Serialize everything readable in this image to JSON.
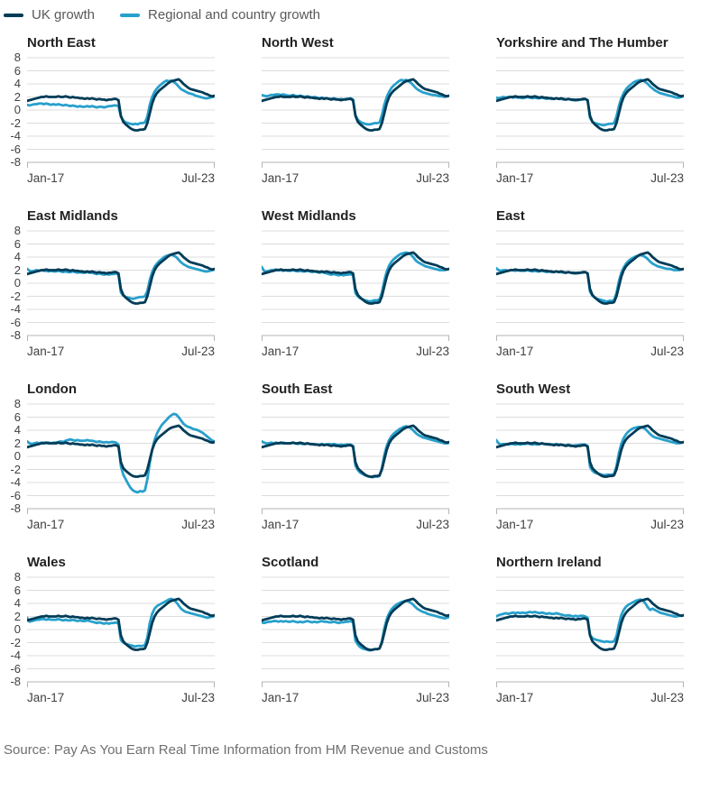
{
  "legend": {
    "uk_label": "UK growth",
    "regional_label": "Regional and country growth"
  },
  "source_text": "Source: Pay As You Earn Real Time Information from HM Revenue and Customs",
  "colors": {
    "uk_line": "#003c57",
    "regional_line": "#27a0cc",
    "gridline": "#dcdcdc",
    "axis": "#b5b5b5",
    "title_text": "#222222",
    "tick_text": "#414042",
    "legend_text": "#595959",
    "source_text": "#707071"
  },
  "chart_data": {
    "type": "line",
    "layout": "small-multiples 4 rows x 3 cols",
    "frequency": "monthly",
    "x_start": "Jan-17",
    "x_end": "Jul-23",
    "x_tick_labels": [
      "Jan-17",
      "Jul-23"
    ],
    "ylim": [
      -8,
      8
    ],
    "y_ticks": [
      8,
      6,
      4,
      2,
      0,
      -2,
      -4,
      -6,
      -8
    ],
    "grid": true,
    "legend_position": "top-left",
    "uk_series": {
      "name": "UK growth",
      "values": [
        1.4,
        1.5,
        1.6,
        1.7,
        1.8,
        1.9,
        2.0,
        2.0,
        2.1,
        2.0,
        2.0,
        2.0,
        2.0,
        2.1,
        2.0,
        2.0,
        2.1,
        2.0,
        1.9,
        2.0,
        1.9,
        1.9,
        1.8,
        1.8,
        1.7,
        1.8,
        1.7,
        1.8,
        1.7,
        1.6,
        1.7,
        1.6,
        1.6,
        1.5,
        1.6,
        1.6,
        1.7,
        1.7,
        1.5,
        -0.9,
        -1.8,
        -2.2,
        -2.5,
        -2.8,
        -3.0,
        -3.1,
        -3.1,
        -3.0,
        -3.0,
        -2.9,
        -2.0,
        -0.5,
        1.0,
        2.0,
        2.6,
        3.0,
        3.3,
        3.6,
        3.9,
        4.2,
        4.4,
        4.5,
        4.6,
        4.7,
        4.4,
        4.0,
        3.7,
        3.4,
        3.2,
        3.1,
        3.0,
        2.9,
        2.8,
        2.7,
        2.5,
        2.4,
        2.2,
        2.1,
        2.2
      ]
    },
    "charts": [
      {
        "title": "North East",
        "regional_values": [
          0.8,
          0.7,
          0.8,
          0.9,
          0.9,
          1.0,
          1.0,
          0.9,
          1.0,
          0.9,
          0.8,
          0.9,
          0.8,
          0.9,
          0.8,
          0.7,
          0.8,
          0.7,
          0.6,
          0.7,
          0.6,
          0.5,
          0.6,
          0.5,
          0.5,
          0.6,
          0.5,
          0.6,
          0.5,
          0.4,
          0.5,
          0.5,
          0.4,
          0.5,
          0.6,
          0.6,
          0.7,
          0.7,
          0.6,
          -1.0,
          -1.6,
          -1.9,
          -2.0,
          -2.1,
          -2.2,
          -2.1,
          -2.2,
          -2.0,
          -2.0,
          -1.9,
          -1.0,
          0.8,
          2.0,
          2.8,
          3.3,
          3.7,
          4.0,
          4.3,
          4.5,
          4.4,
          4.5,
          4.3,
          4.0,
          3.6,
          3.2,
          3.0,
          2.8,
          2.6,
          2.5,
          2.4,
          2.2,
          2.1,
          2.0,
          1.9,
          1.8,
          1.8,
          1.9,
          2.0,
          2.1
        ]
      },
      {
        "title": "North West",
        "regional_values": [
          2.3,
          2.2,
          2.1,
          2.2,
          2.3,
          2.3,
          2.4,
          2.4,
          2.3,
          2.4,
          2.3,
          2.2,
          2.2,
          2.3,
          2.2,
          2.1,
          2.2,
          2.1,
          2.0,
          2.1,
          2.0,
          1.9,
          2.0,
          1.9,
          1.8,
          1.9,
          1.8,
          1.8,
          1.7,
          1.7,
          1.8,
          1.7,
          1.6,
          1.7,
          1.6,
          1.7,
          1.7,
          1.8,
          1.6,
          -0.8,
          -1.5,
          -1.8,
          -2.0,
          -2.1,
          -2.2,
          -2.2,
          -2.1,
          -2.0,
          -2.0,
          -1.9,
          -0.8,
          0.8,
          2.0,
          2.8,
          3.4,
          3.8,
          4.1,
          4.4,
          4.6,
          4.5,
          4.6,
          4.4,
          4.2,
          3.8,
          3.4,
          3.1,
          2.9,
          2.7,
          2.6,
          2.5,
          2.4,
          2.3,
          2.3,
          2.2,
          2.1,
          2.1,
          2.0,
          2.1,
          2.2
        ]
      },
      {
        "title": "Yorkshire and The Humber",
        "regional_values": [
          1.9,
          1.8,
          1.9,
          2.0,
          1.9,
          2.0,
          2.0,
          1.9,
          2.0,
          1.9,
          1.9,
          1.8,
          1.9,
          2.0,
          1.9,
          1.8,
          1.9,
          1.8,
          1.8,
          1.9,
          1.8,
          1.7,
          1.8,
          1.7,
          1.7,
          1.8,
          1.7,
          1.7,
          1.6,
          1.6,
          1.7,
          1.6,
          1.5,
          1.6,
          1.5,
          1.6,
          1.6,
          1.7,
          1.5,
          -1.2,
          -1.8,
          -2.0,
          -2.1,
          -2.2,
          -2.3,
          -2.3,
          -2.2,
          -2.1,
          -2.1,
          -2.0,
          -1.0,
          0.6,
          1.8,
          2.6,
          3.2,
          3.6,
          3.9,
          4.2,
          4.4,
          4.5,
          4.6,
          4.5,
          4.3,
          4.0,
          3.6,
          3.3,
          3.0,
          2.8,
          2.6,
          2.5,
          2.4,
          2.3,
          2.2,
          2.1,
          2.0,
          1.9,
          1.9,
          2.0,
          2.2
        ]
      },
      {
        "title": "East Midlands",
        "regional_values": [
          2.2,
          1.9,
          1.8,
          1.9,
          2.0,
          1.9,
          2.0,
          1.9,
          1.9,
          1.8,
          1.9,
          1.8,
          1.8,
          1.9,
          1.8,
          1.7,
          1.8,
          1.7,
          1.7,
          1.8,
          1.7,
          1.6,
          1.7,
          1.6,
          1.6,
          1.7,
          1.6,
          1.6,
          1.5,
          1.4,
          1.5,
          1.4,
          1.3,
          1.4,
          1.3,
          1.4,
          1.4,
          1.5,
          1.3,
          -1.4,
          -1.9,
          -2.1,
          -2.2,
          -2.3,
          -2.4,
          -2.3,
          -2.2,
          -2.1,
          -2.1,
          -2.0,
          -1.2,
          0.5,
          1.7,
          2.5,
          3.0,
          3.4,
          3.7,
          4.0,
          4.2,
          4.3,
          4.4,
          4.2,
          4.0,
          3.6,
          3.2,
          2.9,
          2.7,
          2.5,
          2.4,
          2.3,
          2.2,
          2.1,
          2.0,
          1.9,
          1.8,
          1.8,
          1.9,
          2.0,
          2.1
        ]
      },
      {
        "title": "West Midlands",
        "regional_values": [
          2.5,
          1.9,
          1.8,
          1.9,
          2.0,
          2.0,
          2.1,
          2.0,
          2.0,
          1.9,
          2.0,
          1.9,
          1.9,
          2.0,
          1.9,
          1.8,
          1.9,
          1.8,
          1.8,
          1.9,
          1.8,
          1.7,
          1.8,
          1.7,
          1.6,
          1.7,
          1.6,
          1.5,
          1.4,
          1.3,
          1.4,
          1.3,
          1.2,
          1.3,
          1.2,
          1.3,
          1.3,
          1.4,
          1.2,
          -1.5,
          -2.0,
          -2.3,
          -2.5,
          -2.6,
          -2.7,
          -2.8,
          -2.7,
          -2.6,
          -2.6,
          -2.5,
          -1.4,
          0.4,
          1.8,
          2.7,
          3.3,
          3.7,
          4.0,
          4.3,
          4.5,
          4.6,
          4.7,
          4.6,
          4.4,
          4.0,
          3.5,
          3.2,
          3.0,
          2.8,
          2.6,
          2.5,
          2.4,
          2.3,
          2.2,
          2.1,
          2.0,
          2.0,
          2.0,
          2.1,
          2.2
        ]
      },
      {
        "title": "East",
        "regional_values": [
          2.3,
          2.0,
          1.9,
          2.0,
          2.0,
          1.9,
          2.0,
          2.0,
          1.9,
          2.0,
          1.9,
          1.9,
          1.9,
          2.0,
          1.9,
          1.8,
          1.9,
          1.8,
          1.8,
          1.9,
          1.8,
          1.7,
          1.8,
          1.7,
          1.7,
          1.8,
          1.7,
          1.7,
          1.6,
          1.6,
          1.7,
          1.6,
          1.5,
          1.6,
          1.5,
          1.6,
          1.6,
          1.7,
          1.5,
          -1.3,
          -1.9,
          -2.2,
          -2.4,
          -2.5,
          -2.6,
          -2.7,
          -2.8,
          -2.7,
          -2.7,
          -2.6,
          -1.5,
          0.3,
          1.6,
          2.4,
          3.0,
          3.4,
          3.7,
          3.9,
          4.1,
          4.2,
          4.3,
          4.2,
          4.0,
          3.7,
          3.3,
          3.0,
          2.8,
          2.6,
          2.5,
          2.4,
          2.3,
          2.2,
          2.2,
          2.1,
          2.0,
          2.0,
          2.0,
          2.1,
          2.2
        ]
      },
      {
        "title": "London",
        "regional_values": [
          2.3,
          2.0,
          1.9,
          2.0,
          2.1,
          2.0,
          2.1,
          2.1,
          2.0,
          2.1,
          2.0,
          2.1,
          2.1,
          2.2,
          2.3,
          2.2,
          2.4,
          2.5,
          2.6,
          2.5,
          2.4,
          2.5,
          2.4,
          2.4,
          2.4,
          2.5,
          2.4,
          2.4,
          2.3,
          2.2,
          2.3,
          2.2,
          2.1,
          2.2,
          2.1,
          2.2,
          2.2,
          2.1,
          1.8,
          -1.5,
          -2.8,
          -3.5,
          -4.2,
          -4.8,
          -5.2,
          -5.4,
          -5.5,
          -5.3,
          -5.4,
          -5.2,
          -3.5,
          -1.0,
          1.0,
          2.5,
          3.5,
          4.2,
          4.8,
          5.2,
          5.6,
          6.0,
          6.3,
          6.5,
          6.4,
          6.0,
          5.5,
          5.0,
          4.7,
          4.5,
          4.4,
          4.2,
          4.1,
          4.0,
          3.8,
          3.6,
          3.3,
          3.0,
          2.7,
          2.4,
          2.3
        ]
      },
      {
        "title": "South East",
        "regional_values": [
          2.3,
          2.1,
          2.0,
          2.0,
          2.1,
          2.0,
          2.1,
          2.0,
          2.0,
          2.1,
          2.0,
          2.0,
          2.0,
          2.1,
          2.0,
          1.9,
          2.0,
          1.9,
          1.9,
          2.0,
          1.9,
          1.8,
          1.9,
          1.8,
          1.8,
          1.9,
          1.8,
          1.8,
          1.9,
          1.8,
          1.9,
          1.8,
          1.7,
          1.8,
          1.7,
          1.8,
          1.8,
          1.8,
          1.6,
          -1.4,
          -2.1,
          -2.5,
          -2.7,
          -2.9,
          -3.0,
          -3.1,
          -3.2,
          -3.1,
          -3.1,
          -3.0,
          -1.8,
          0.2,
          1.6,
          2.5,
          3.1,
          3.5,
          3.8,
          4.1,
          4.3,
          4.5,
          4.6,
          4.5,
          4.3,
          4.0,
          3.6,
          3.3,
          3.1,
          2.9,
          2.8,
          2.7,
          2.6,
          2.5,
          2.4,
          2.3,
          2.2,
          2.1,
          2.0,
          2.0,
          2.1
        ]
      },
      {
        "title": "South West",
        "regional_values": [
          2.5,
          2.0,
          1.8,
          1.9,
          1.9,
          1.8,
          1.9,
          1.9,
          1.8,
          1.9,
          1.8,
          1.9,
          1.9,
          2.0,
          1.9,
          1.8,
          1.9,
          1.8,
          1.9,
          2.0,
          1.9,
          1.8,
          1.9,
          1.8,
          1.8,
          1.9,
          1.8,
          1.8,
          1.7,
          1.7,
          1.8,
          1.7,
          1.6,
          1.7,
          1.7,
          1.8,
          1.8,
          1.8,
          1.6,
          -1.6,
          -2.2,
          -2.5,
          -2.6,
          -2.7,
          -2.8,
          -2.9,
          -2.8,
          -2.8,
          -2.8,
          -2.7,
          -1.5,
          0.5,
          1.9,
          2.8,
          3.4,
          3.8,
          4.1,
          4.3,
          4.4,
          4.5,
          4.5,
          4.4,
          4.2,
          3.8,
          3.4,
          3.1,
          2.9,
          2.8,
          2.7,
          2.6,
          2.5,
          2.4,
          2.3,
          2.2,
          2.1,
          2.0,
          2.0,
          2.1,
          2.2
        ]
      },
      {
        "title": "Wales",
        "regional_values": [
          1.8,
          1.2,
          1.3,
          1.4,
          1.5,
          1.5,
          1.6,
          1.6,
          1.5,
          1.6,
          1.5,
          1.5,
          1.5,
          1.6,
          1.5,
          1.4,
          1.5,
          1.4,
          1.4,
          1.5,
          1.4,
          1.3,
          1.4,
          1.3,
          1.3,
          1.4,
          1.3,
          1.2,
          1.1,
          1.0,
          1.1,
          1.0,
          0.9,
          1.0,
          0.9,
          1.0,
          1.0,
          1.1,
          0.9,
          -1.6,
          -2.0,
          -2.2,
          -2.3,
          -2.4,
          -2.5,
          -2.6,
          -2.5,
          -2.5,
          -2.5,
          -2.4,
          -1.2,
          1.0,
          2.4,
          3.2,
          3.6,
          3.8,
          4.0,
          4.2,
          4.4,
          4.6,
          4.7,
          4.5,
          4.2,
          3.7,
          3.2,
          2.9,
          2.7,
          2.6,
          2.5,
          2.4,
          2.3,
          2.2,
          2.1,
          2.0,
          1.9,
          1.8,
          1.9,
          2.0,
          2.1
        ]
      },
      {
        "title": "Scotland",
        "regional_values": [
          1.1,
          1.0,
          1.1,
          1.2,
          1.2,
          1.3,
          1.3,
          1.2,
          1.3,
          1.2,
          1.3,
          1.2,
          1.2,
          1.3,
          1.2,
          1.1,
          1.2,
          1.1,
          1.2,
          1.3,
          1.2,
          1.1,
          1.2,
          1.1,
          1.2,
          1.3,
          1.2,
          1.2,
          1.1,
          1.1,
          1.2,
          1.1,
          1.0,
          1.1,
          1.1,
          1.2,
          1.2,
          1.3,
          1.1,
          -1.7,
          -2.3,
          -2.7,
          -2.9,
          -3.0,
          -3.1,
          -3.2,
          -3.1,
          -3.0,
          -3.0,
          -2.9,
          -1.8,
          0.2,
          1.6,
          2.5,
          3.1,
          3.5,
          3.8,
          4.0,
          4.2,
          4.3,
          4.4,
          4.3,
          4.1,
          3.8,
          3.4,
          3.1,
          2.9,
          2.7,
          2.6,
          2.4,
          2.3,
          2.2,
          2.1,
          2.0,
          1.9,
          1.8,
          1.7,
          1.8,
          1.9
        ]
      },
      {
        "title": "Northern Ireland",
        "regional_values": [
          2.0,
          2.2,
          2.3,
          2.4,
          2.5,
          2.4,
          2.5,
          2.6,
          2.5,
          2.6,
          2.5,
          2.6,
          2.5,
          2.6,
          2.7,
          2.6,
          2.7,
          2.6,
          2.5,
          2.6,
          2.5,
          2.4,
          2.5,
          2.4,
          2.4,
          2.5,
          2.4,
          2.3,
          2.2,
          2.1,
          2.2,
          2.1,
          2.0,
          2.1,
          2.0,
          2.1,
          2.1,
          2.0,
          1.8,
          -0.8,
          -1.3,
          -1.5,
          -1.6,
          -1.7,
          -1.8,
          -1.9,
          -1.8,
          -1.9,
          -1.9,
          -1.8,
          -1.0,
          0.8,
          2.2,
          3.0,
          3.5,
          3.8,
          4.0,
          4.2,
          4.4,
          4.5,
          4.6,
          4.4,
          4.0,
          3.4,
          3.0,
          3.2,
          3.0,
          2.8,
          2.6,
          2.5,
          2.4,
          2.3,
          2.2,
          2.1,
          2.0,
          2.0,
          2.1,
          2.1,
          2.2
        ]
      }
    ]
  }
}
